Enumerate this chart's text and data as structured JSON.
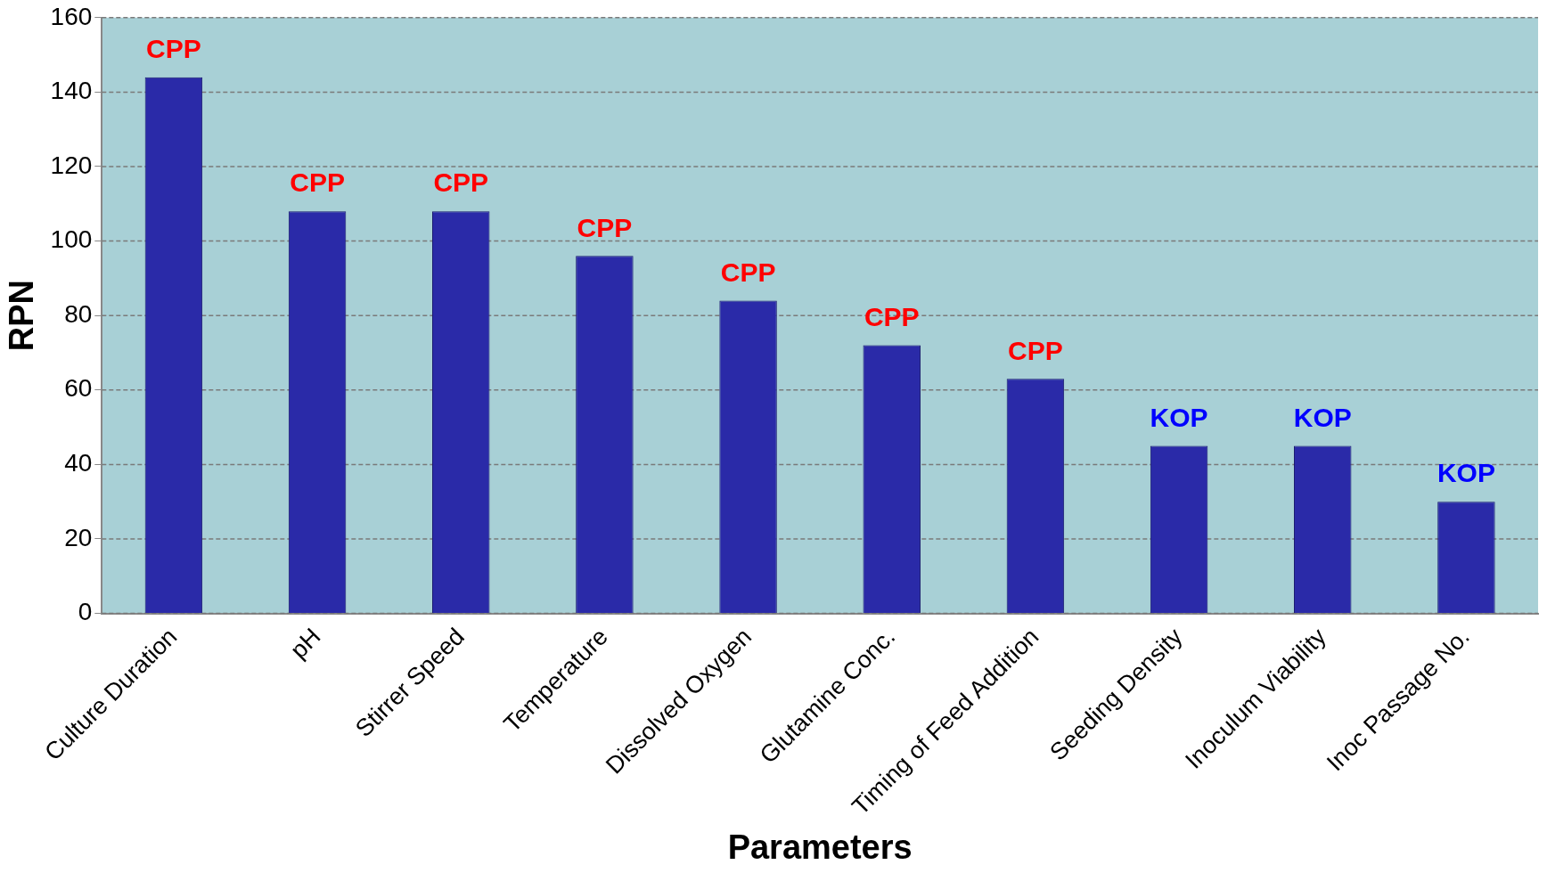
{
  "chart_data": {
    "type": "bar",
    "xlabel": "Parameters",
    "ylabel": "RPN",
    "categories": [
      "Culture Duration",
      "pH",
      "Stirrer Speed",
      "Temperature",
      "Dissolved Oxygen",
      "Glutamine Conc.",
      "Timing of Feed Addition",
      "Seeding Density",
      "Inoculum Viability",
      "Inoc Passage No."
    ],
    "values": [
      144,
      108,
      108,
      96,
      84,
      72,
      63,
      45,
      45,
      30
    ],
    "color": "#2a2aa8",
    "ylim": [
      0,
      160
    ],
    "yticks": [
      0,
      20,
      40,
      60,
      80,
      100,
      120,
      140,
      160
    ],
    "grid": "y",
    "value_labels": [
      "CPP",
      "CPP",
      "CPP",
      "CPP",
      "CPP",
      "CPP",
      "CPP",
      "KOP",
      "KOP",
      "KOP"
    ]
  }
}
